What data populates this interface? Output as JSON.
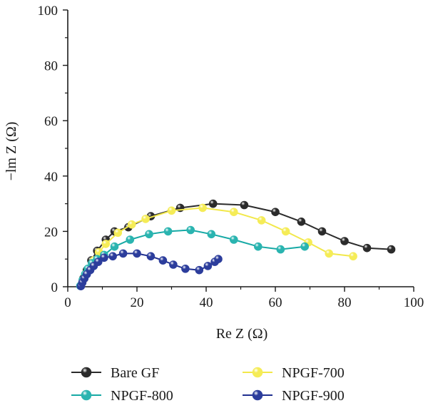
{
  "chart_data": {
    "type": "line",
    "xlabel": "Re Z (Ω)",
    "ylabel": "−lm Z (Ω)",
    "xlim": [
      0,
      100
    ],
    "ylim": [
      0,
      100
    ],
    "xticks": [
      0,
      20,
      40,
      60,
      80,
      100
    ],
    "yticks": [
      0,
      20,
      40,
      60,
      80,
      100
    ],
    "x_tick_labels": [
      "0",
      "20",
      "40",
      "60",
      "80",
      "100"
    ],
    "y_tick_labels": [
      "0",
      "20",
      "40",
      "60",
      "80",
      "100"
    ],
    "grid": false,
    "legend_position": "bottom",
    "series": [
      {
        "name": "Bare GF",
        "line_color": "#2b2b2b",
        "marker_color": "#2b2b2b",
        "points": [
          [
            3.7,
            0.3
          ],
          [
            4.5,
            3
          ],
          [
            5.5,
            6
          ],
          [
            6.8,
            9.5
          ],
          [
            8.5,
            13
          ],
          [
            11,
            17
          ],
          [
            13.5,
            20
          ],
          [
            17.5,
            21.5
          ],
          [
            24,
            25.5
          ],
          [
            32.5,
            28.5
          ],
          [
            42,
            30
          ],
          [
            51,
            29.5
          ],
          [
            60,
            27
          ],
          [
            67.5,
            23.5
          ],
          [
            73.5,
            20
          ],
          [
            80,
            16.5
          ],
          [
            86.5,
            14
          ],
          [
            93.5,
            13.5
          ]
        ]
      },
      {
        "name": "NPGF-700",
        "line_color": "#f2e84a",
        "marker_color": "#f5ec57",
        "points": [
          [
            3.8,
            0.4
          ],
          [
            4.8,
            3
          ],
          [
            6,
            6.5
          ],
          [
            7.5,
            9.5
          ],
          [
            9,
            12.5
          ],
          [
            11,
            15.5
          ],
          [
            14.5,
            19.5
          ],
          [
            18.5,
            22.5
          ],
          [
            22.5,
            24.5
          ],
          [
            30,
            27.5
          ],
          [
            39,
            28.5
          ],
          [
            48,
            27
          ],
          [
            56,
            24
          ],
          [
            63,
            20
          ],
          [
            69.5,
            16
          ],
          [
            75.5,
            12
          ],
          [
            82.5,
            11
          ]
        ]
      },
      {
        "name": "NPGF-800",
        "line_color": "#16a9a5",
        "marker_color": "#2ab4b0",
        "points": [
          [
            3.6,
            0.3
          ],
          [
            4.3,
            2.5
          ],
          [
            5,
            4.5
          ],
          [
            5.8,
            6.5
          ],
          [
            7,
            8.5
          ],
          [
            8.5,
            10
          ],
          [
            10.5,
            11.5
          ],
          [
            13.5,
            14.5
          ],
          [
            18,
            17
          ],
          [
            23.5,
            19
          ],
          [
            29,
            20
          ],
          [
            35.5,
            20.5
          ],
          [
            41.5,
            19
          ],
          [
            48,
            17
          ],
          [
            55,
            14.5
          ],
          [
            61.5,
            13.5
          ],
          [
            68.5,
            14.5
          ]
        ]
      },
      {
        "name": "NPGF-900",
        "line_color": "#1f2f8f",
        "marker_color": "#2c3d9c",
        "points": [
          [
            3.8,
            0.2
          ],
          [
            4.2,
            1.5
          ],
          [
            4.8,
            3
          ],
          [
            5.5,
            4.5
          ],
          [
            6.5,
            6
          ],
          [
            7.5,
            7.5
          ],
          [
            8.8,
            9
          ],
          [
            10.5,
            10.5
          ],
          [
            13,
            11
          ],
          [
            16,
            12
          ],
          [
            20,
            12
          ],
          [
            24,
            11
          ],
          [
            27.5,
            9.5
          ],
          [
            30.5,
            8
          ],
          [
            34,
            6.5
          ],
          [
            38,
            6
          ],
          [
            40.5,
            7.5
          ],
          [
            42.5,
            9
          ],
          [
            43.5,
            10
          ]
        ]
      }
    ]
  }
}
